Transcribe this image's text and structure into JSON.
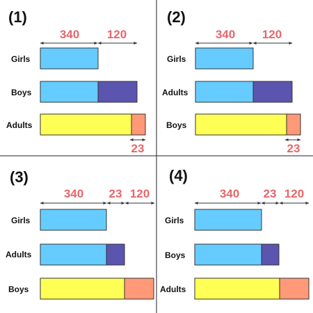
{
  "colors": {
    "girls_bar": "#66ccff",
    "extra_segment": "#5b55b0",
    "adults_bar": "#ffff55",
    "small_segment": "#ff9977",
    "dimension_text": "#e8666a",
    "divider": "#222222"
  },
  "panels": [
    {
      "number": "(1)",
      "dimensions": {
        "top_left": "340",
        "top_right": "120",
        "bottom": "23"
      },
      "rows": [
        {
          "label": "Girls",
          "segments": [
            "girls_bar"
          ]
        },
        {
          "label": "Boys",
          "segments": [
            "girls_bar",
            "extra_segment"
          ]
        },
        {
          "label": "Adults",
          "segments": [
            "adults_bar",
            "small_segment"
          ]
        }
      ]
    },
    {
      "number": "(2)",
      "dimensions": {
        "top_left": "340",
        "top_right": "120",
        "bottom": "23"
      },
      "rows": [
        {
          "label": "Girls",
          "segments": [
            "girls_bar"
          ]
        },
        {
          "label": "Adults",
          "segments": [
            "girls_bar",
            "extra_segment"
          ]
        },
        {
          "label": "Boys",
          "segments": [
            "adults_bar",
            "small_segment"
          ]
        }
      ]
    },
    {
      "number": "(3)",
      "dimensions": {
        "top_left": "340",
        "top_middle": "23",
        "top_right": "120"
      },
      "rows": [
        {
          "label": "Girls",
          "segments": [
            "girls_bar"
          ]
        },
        {
          "label": "Adults",
          "segments": [
            "girls_bar",
            "extra_segment"
          ]
        },
        {
          "label": "Boys",
          "segments": [
            "adults_bar",
            "small_segment"
          ]
        }
      ]
    },
    {
      "number": "(4)",
      "dimensions": {
        "top_left": "340",
        "top_middle": "23",
        "top_right": "120"
      },
      "rows": [
        {
          "label": "Girls",
          "segments": [
            "girls_bar"
          ]
        },
        {
          "label": "Boys",
          "segments": [
            "girls_bar",
            "extra_segment"
          ]
        },
        {
          "label": "Adults",
          "segments": [
            "adults_bar",
            "small_segment"
          ]
        }
      ]
    }
  ]
}
